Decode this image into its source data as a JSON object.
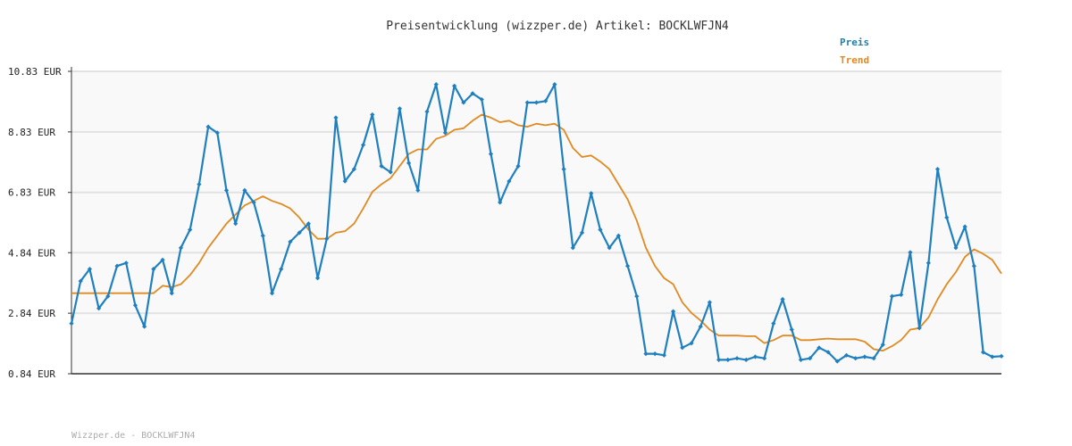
{
  "chart_data": {
    "type": "line",
    "title": "Preisentwicklung (wizzper.de) Artikel: BOCKLWFJN4",
    "ylim": [
      0.84,
      10.83
    ],
    "yticks": [
      "10.83 EUR",
      "8.83 EUR",
      "6.83 EUR",
      "4.84 EUR",
      "2.84 EUR",
      "0.84 EUR"
    ],
    "ytick_values": [
      10.83,
      8.83,
      6.83,
      4.84,
      2.84,
      0.84
    ],
    "grid": true,
    "legend_position": "top-right",
    "series": [
      {
        "name": "Preis",
        "color": "#1f7fbf",
        "values": [
          2.5,
          3.9,
          4.3,
          3.0,
          3.4,
          4.4,
          4.5,
          3.1,
          2.4,
          4.3,
          4.6,
          3.5,
          5.0,
          5.6,
          7.1,
          9.0,
          8.8,
          6.9,
          5.8,
          6.9,
          6.5,
          5.4,
          3.5,
          4.3,
          5.2,
          5.5,
          5.8,
          4.0,
          5.3,
          9.3,
          7.2,
          7.6,
          8.4,
          9.4,
          7.7,
          7.5,
          9.6,
          7.8,
          6.9,
          9.5,
          10.4,
          8.8,
          10.35,
          9.8,
          10.1,
          9.9,
          8.1,
          6.5,
          7.2,
          7.7,
          9.8,
          9.8,
          9.85,
          10.4,
          7.6,
          5.0,
          5.5,
          6.8,
          5.6,
          5.0,
          5.4,
          4.4,
          3.4,
          1.5,
          1.5,
          1.45,
          2.9,
          1.7,
          1.85,
          2.4,
          3.2,
          1.3,
          1.3,
          1.35,
          1.3,
          1.4,
          1.35,
          2.5,
          3.3,
          2.3,
          1.3,
          1.35,
          1.7,
          1.55,
          1.25,
          1.45,
          1.35,
          1.4,
          1.35,
          1.8,
          3.4,
          3.45,
          4.85,
          2.35,
          4.5,
          7.6,
          6.0,
          5.0,
          5.7,
          4.4,
          1.55,
          1.4,
          1.42
        ]
      },
      {
        "name": "Trend",
        "color": "#e08a22",
        "values": [
          3.5,
          3.5,
          3.5,
          3.5,
          3.5,
          3.5,
          3.5,
          3.5,
          3.5,
          3.5,
          3.75,
          3.7,
          3.8,
          4.1,
          4.5,
          5.0,
          5.4,
          5.8,
          6.1,
          6.4,
          6.55,
          6.7,
          6.55,
          6.45,
          6.3,
          6.0,
          5.6,
          5.3,
          5.3,
          5.5,
          5.55,
          5.8,
          6.3,
          6.85,
          7.1,
          7.3,
          7.7,
          8.1,
          8.25,
          8.25,
          8.6,
          8.7,
          8.9,
          8.95,
          9.2,
          9.4,
          9.3,
          9.15,
          9.2,
          9.05,
          9.0,
          9.1,
          9.05,
          9.1,
          8.9,
          8.3,
          8.0,
          8.05,
          7.85,
          7.6,
          7.1,
          6.6,
          5.9,
          5.0,
          4.4,
          4.0,
          3.8,
          3.2,
          2.85,
          2.6,
          2.3,
          2.1,
          2.1,
          2.1,
          2.08,
          2.08,
          1.85,
          1.95,
          2.1,
          2.1,
          1.95,
          1.95,
          1.98,
          2.0,
          1.98,
          1.98,
          1.98,
          1.9,
          1.65,
          1.6,
          1.75,
          1.95,
          2.3,
          2.35,
          2.7,
          3.3,
          3.8,
          4.2,
          4.7,
          4.95,
          4.8,
          4.6,
          4.15
        ]
      }
    ]
  },
  "footer": "Wizzper.de - BOCKLWFJN4"
}
